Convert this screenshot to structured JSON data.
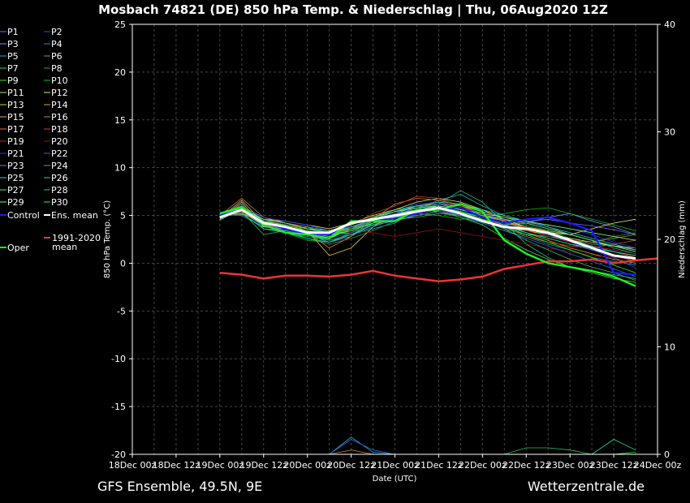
{
  "chart_data": {
    "type": "line",
    "title": "Mosbach 74821 (DE)  850 hPa Temp. & Niederschlag | Thu, 06Aug2020 12Z",
    "xlabel": "Date (UTC)",
    "ylabel": "850 hPa Temp. (°C)",
    "ylabel_right": "Niederschlag (mm)",
    "ylim": [
      -20,
      25
    ],
    "ylim_right": [
      0,
      40
    ],
    "yticks": [
      -20,
      -15,
      -10,
      -5,
      0,
      5,
      10,
      15,
      20,
      25
    ],
    "yticks_right": [
      0,
      10,
      20,
      30,
      40
    ],
    "x_step_hours": 6,
    "xlim_index": [
      0,
      24
    ],
    "x_tick_labels": [
      "18Dec 00z",
      "18Dec 12z",
      "19Dec 00z",
      "19Dec 12z",
      "20Dec 00z",
      "20Dec 12z",
      "21Dec 00z",
      "21Dec 12z",
      "22Dec 00z",
      "22Dec 12z",
      "23Dec 00z",
      "23Dec 12z",
      "24Dec 00z"
    ],
    "grid": true,
    "legend_position": "left",
    "footer_left": "GFS Ensemble, 49.5N, 9E",
    "footer_right": "Wetterzentrale.de",
    "members": [
      {
        "name": "P1",
        "color": "#6a6aff"
      },
      {
        "name": "P2",
        "color": "#2a4cff"
      },
      {
        "name": "P3",
        "color": "#7f8fff"
      },
      {
        "name": "P4",
        "color": "#1e90c8"
      },
      {
        "name": "P5",
        "color": "#20b4b4"
      },
      {
        "name": "P6",
        "color": "#20c080"
      },
      {
        "name": "P7",
        "color": "#30d070"
      },
      {
        "name": "P8",
        "color": "#20a040"
      },
      {
        "name": "P9",
        "color": "#40e040"
      },
      {
        "name": "P10",
        "color": "#10c010"
      },
      {
        "name": "P11",
        "color": "#d0e060"
      },
      {
        "name": "P12",
        "color": "#e8e878"
      },
      {
        "name": "P13",
        "color": "#e0c040"
      },
      {
        "name": "P14",
        "color": "#e8a020"
      },
      {
        "name": "P15",
        "color": "#d8a070"
      },
      {
        "name": "P16",
        "color": "#c08040"
      },
      {
        "name": "P17",
        "color": "#e07030"
      },
      {
        "name": "P18",
        "color": "#d04020"
      },
      {
        "name": "P19",
        "color": "#c02020"
      },
      {
        "name": "P20",
        "color": "#901010"
      },
      {
        "name": "P21",
        "color": "#3030ff"
      },
      {
        "name": "P22",
        "color": "#2070e0"
      },
      {
        "name": "P23",
        "color": "#6080c0"
      },
      {
        "name": "P24",
        "color": "#40a0c0"
      },
      {
        "name": "P25",
        "color": "#30d0d0"
      },
      {
        "name": "P26",
        "color": "#20e0a0"
      },
      {
        "name": "P27",
        "color": "#50f080"
      },
      {
        "name": "P28",
        "color": "#30c060"
      },
      {
        "name": "P29",
        "color": "#70ff70"
      },
      {
        "name": "P30",
        "color": "#20ff20"
      }
    ],
    "member_values": [
      [
        4.8,
        5.6,
        4.2,
        3.8,
        3.2,
        2.6,
        3.8,
        4.6,
        5.0,
        5.8,
        6.0,
        5.4,
        4.8,
        4.5,
        4.4,
        4.6,
        4.2,
        3.9,
        3.5,
        3.0
      ],
      [
        5.0,
        5.2,
        4.4,
        3.6,
        3.0,
        2.8,
        3.4,
        4.8,
        5.4,
        6.2,
        6.4,
        5.8,
        5.0,
        4.2,
        3.6,
        3.0,
        2.2,
        1.4,
        0.6,
        -0.5
      ],
      [
        4.6,
        6.2,
        3.6,
        3.4,
        3.0,
        2.2,
        2.8,
        4.2,
        4.6,
        5.2,
        5.6,
        5.0,
        4.6,
        4.0,
        4.2,
        4.8,
        5.2,
        4.4,
        3.8,
        3.0
      ],
      [
        5.2,
        5.8,
        4.6,
        4.0,
        3.6,
        3.0,
        3.6,
        4.0,
        4.4,
        5.0,
        5.4,
        4.8,
        4.2,
        3.4,
        2.8,
        2.0,
        1.4,
        0.6,
        0.2,
        -0.2
      ],
      [
        4.9,
        5.4,
        4.0,
        3.2,
        2.8,
        2.4,
        3.0,
        3.6,
        4.2,
        5.6,
        6.6,
        7.2,
        6.0,
        5.0,
        4.4,
        3.8,
        3.0,
        2.4,
        1.6,
        1.0
      ],
      [
        5.1,
        5.0,
        3.8,
        3.6,
        3.2,
        3.0,
        3.8,
        4.4,
        5.2,
        5.8,
        6.2,
        7.6,
        6.4,
        4.2,
        2.0,
        0.6,
        -0.4,
        -0.8,
        -1.2,
        -1.6
      ],
      [
        4.7,
        5.9,
        4.8,
        4.2,
        3.8,
        3.4,
        4.0,
        4.8,
        5.6,
        6.0,
        5.8,
        5.2,
        4.4,
        3.6,
        3.0,
        2.8,
        2.4,
        2.0,
        1.8,
        1.2
      ],
      [
        5.3,
        5.5,
        4.2,
        3.4,
        2.6,
        2.0,
        2.6,
        3.4,
        4.4,
        5.4,
        6.2,
        6.0,
        5.2,
        4.6,
        4.0,
        3.4,
        2.6,
        2.2,
        2.8,
        3.2
      ],
      [
        4.5,
        5.7,
        4.6,
        3.8,
        3.4,
        3.2,
        3.8,
        4.6,
        5.2,
        5.6,
        5.4,
        4.8,
        4.0,
        2.6,
        1.4,
        0.4,
        -0.4,
        -1.0,
        -1.6,
        -2.0
      ],
      [
        5.0,
        6.0,
        4.4,
        3.2,
        2.4,
        2.2,
        3.2,
        4.4,
        5.0,
        5.2,
        5.0,
        4.6,
        4.8,
        5.2,
        5.6,
        5.8,
        5.2,
        4.6,
        4.0,
        3.4
      ],
      [
        4.8,
        5.3,
        4.0,
        3.6,
        3.0,
        2.6,
        3.6,
        4.4,
        4.8,
        5.4,
        5.8,
        5.2,
        4.4,
        3.8,
        3.4,
        3.0,
        2.6,
        2.2,
        1.8,
        1.6
      ],
      [
        4.9,
        5.8,
        4.6,
        4.4,
        4.0,
        3.6,
        4.2,
        5.0,
        5.6,
        6.4,
        6.8,
        6.4,
        5.6,
        4.6,
        3.8,
        3.2,
        3.0,
        3.6,
        4.2,
        4.6
      ],
      [
        4.6,
        6.4,
        3.8,
        3.6,
        3.4,
        0.8,
        1.6,
        3.8,
        5.2,
        6.0,
        6.2,
        5.6,
        5.0,
        4.4,
        3.8,
        3.4,
        3.0,
        2.4,
        1.8,
        1.2
      ],
      [
        5.2,
        5.1,
        4.4,
        4.0,
        3.6,
        3.2,
        3.6,
        4.2,
        5.0,
        5.6,
        5.8,
        5.4,
        4.8,
        4.0,
        3.2,
        2.4,
        1.6,
        1.0,
        0.4,
        0.0
      ],
      [
        4.7,
        6.6,
        4.2,
        3.8,
        3.2,
        2.8,
        3.6,
        4.8,
        5.4,
        5.8,
        6.2,
        6.0,
        5.4,
        4.8,
        4.2,
        3.6,
        3.0,
        2.4,
        1.8,
        1.4
      ],
      [
        5.0,
        6.8,
        4.8,
        4.2,
        3.8,
        3.0,
        3.2,
        4.0,
        4.6,
        5.0,
        5.4,
        5.0,
        4.6,
        4.2,
        3.8,
        3.2,
        2.4,
        2.2,
        2.6,
        3.0
      ],
      [
        4.8,
        5.6,
        4.0,
        3.6,
        3.2,
        1.6,
        2.8,
        4.6,
        6.2,
        6.8,
        6.6,
        6.0,
        5.2,
        4.4,
        3.6,
        3.0,
        2.4,
        1.8,
        1.2,
        0.6
      ],
      [
        5.1,
        5.4,
        4.4,
        4.0,
        3.6,
        3.2,
        4.0,
        5.2,
        6.0,
        7.0,
        6.8,
        6.0,
        5.0,
        3.8,
        2.8,
        2.2,
        1.8,
        1.6,
        2.0,
        2.4
      ],
      [
        4.9,
        5.9,
        4.2,
        3.8,
        3.4,
        3.0,
        3.4,
        4.2,
        4.8,
        5.2,
        5.6,
        5.2,
        4.6,
        4.0,
        3.4,
        2.8,
        2.2,
        1.8,
        1.4,
        1.0
      ],
      [
        5.0,
        5.3,
        4.6,
        4.0,
        3.4,
        3.2,
        3.4,
        3.2,
        2.8,
        3.2,
        3.6,
        3.2,
        2.8,
        2.4,
        2.0,
        1.6,
        1.2,
        0.8,
        0.6,
        0.4
      ],
      [
        4.8,
        5.7,
        4.8,
        4.4,
        4.0,
        3.4,
        3.8,
        4.6,
        5.2,
        5.8,
        6.2,
        5.8,
        5.2,
        4.6,
        4.2,
        4.0,
        3.6,
        3.0,
        2.2,
        1.6
      ],
      [
        5.2,
        5.0,
        4.0,
        3.4,
        3.0,
        2.6,
        3.2,
        4.0,
        4.8,
        5.4,
        5.6,
        5.0,
        4.2,
        3.4,
        2.6,
        1.8,
        1.0,
        0.2,
        -0.6,
        -1.4
      ],
      [
        4.6,
        5.6,
        4.4,
        3.8,
        3.4,
        3.0,
        3.6,
        4.4,
        4.8,
        5.0,
        5.4,
        5.0,
        4.4,
        3.8,
        3.2,
        2.6,
        2.0,
        1.4,
        0.8,
        0.2
      ],
      [
        5.0,
        5.8,
        4.2,
        3.6,
        3.0,
        2.4,
        3.0,
        3.8,
        4.6,
        5.2,
        5.6,
        5.4,
        4.8,
        4.2,
        3.6,
        3.0,
        2.4,
        1.8,
        1.2,
        0.8
      ],
      [
        4.9,
        5.5,
        4.6,
        4.2,
        3.6,
        3.2,
        3.8,
        4.6,
        5.4,
        6.0,
        6.4,
        6.2,
        5.6,
        5.0,
        4.4,
        3.8,
        3.2,
        2.6,
        2.0,
        1.4
      ],
      [
        5.1,
        5.2,
        3.6,
        3.2,
        2.6,
        2.2,
        3.0,
        4.0,
        4.8,
        5.4,
        5.8,
        5.4,
        4.8,
        4.0,
        3.2,
        2.6,
        2.0,
        1.6,
        1.2,
        0.8
      ],
      [
        4.7,
        5.9,
        4.4,
        4.0,
        3.4,
        3.0,
        3.4,
        4.2,
        5.0,
        5.6,
        6.0,
        5.6,
        5.0,
        4.6,
        4.2,
        3.6,
        3.0,
        2.4,
        1.8,
        1.2
      ],
      [
        5.0,
        5.4,
        3.0,
        3.4,
        3.8,
        3.0,
        3.6,
        4.2,
        4.6,
        4.8,
        5.2,
        5.0,
        4.6,
        3.6,
        2.4,
        1.4,
        0.4,
        -0.4,
        -1.0,
        -1.8
      ],
      [
        4.8,
        5.7,
        4.6,
        4.2,
        3.6,
        3.4,
        4.0,
        4.8,
        5.4,
        5.8,
        6.0,
        5.6,
        5.2,
        4.8,
        4.4,
        4.0,
        3.6,
        3.2,
        2.8,
        2.4
      ],
      [
        5.2,
        5.6,
        4.2,
        3.8,
        3.2,
        2.8,
        3.4,
        4.2,
        5.0,
        5.6,
        5.8,
        5.4,
        4.6,
        3.8,
        3.0,
        2.2,
        1.4,
        0.6,
        -0.2,
        -1.0
      ]
    ],
    "control": {
      "name": "Control",
      "color": "#1a1aff",
      "values": [
        5.0,
        5.6,
        4.2,
        3.6,
        3.0,
        3.0,
        4.2,
        4.6,
        4.6,
        5.2,
        5.8,
        5.8,
        4.8,
        4.2,
        4.6,
        4.8,
        4.2,
        3.4,
        -1.0,
        -1.2
      ]
    },
    "ens_mean": {
      "name": "Ens. mean",
      "color": "#ffffff",
      "values": [
        4.8,
        5.6,
        4.2,
        3.8,
        3.2,
        3.2,
        4.2,
        4.6,
        5.0,
        5.4,
        5.8,
        5.2,
        4.4,
        3.8,
        3.6,
        3.2,
        2.4,
        1.6,
        0.8,
        0.5
      ]
    },
    "oper": {
      "name": "Oper",
      "color": "#22ee22",
      "values": [
        5.2,
        5.9,
        4.0,
        3.2,
        3.0,
        2.6,
        4.4,
        4.4,
        4.4,
        5.6,
        5.6,
        6.2,
        5.4,
        2.4,
        1.0,
        0.0,
        -0.4,
        -0.8,
        -1.4,
        -2.4
      ]
    },
    "climate_mean": {
      "name": "1991-2020 mean",
      "color": "#ee3333",
      "values": [
        -1.0,
        -1.2,
        -1.6,
        -1.3,
        -1.3,
        -1.4,
        -1.2,
        -0.8,
        -1.3,
        -1.6,
        -1.9,
        -1.7,
        -1.4,
        -0.6,
        -0.2,
        0.2,
        0.2,
        0.4,
        0.0,
        0.3,
        0.5
      ]
    },
    "precip_series": [
      {
        "name": "P5",
        "color": "#20b4b4",
        "values": [
          0,
          0,
          0,
          0,
          0,
          0,
          0,
          0,
          0,
          0,
          0,
          0,
          0,
          0,
          0,
          0,
          0,
          0,
          0,
          0
        ]
      },
      {
        "name": "P6",
        "color": "#20c080",
        "values": [
          0,
          0,
          0,
          0,
          0,
          0,
          0,
          0,
          0,
          0,
          0,
          0,
          0,
          0,
          0,
          0,
          0,
          0,
          0,
          0
        ]
      },
      {
        "name": "P28",
        "color": "#30c060",
        "values": [
          0,
          0,
          0,
          0,
          0,
          0,
          0,
          0,
          0,
          0,
          0,
          0,
          0,
          0,
          0.6,
          0.6,
          0.4,
          0,
          0,
          0
        ]
      },
      {
        "name": "P26",
        "color": "#20e0a0",
        "values": [
          0,
          0,
          0,
          0,
          0,
          0,
          0,
          0,
          0,
          0,
          0,
          0,
          0,
          0,
          0,
          0,
          0,
          0,
          1.4,
          0.4
        ]
      },
      {
        "name": "P24",
        "color": "#40a0c0",
        "values": [
          0,
          0,
          0,
          0,
          0,
          0,
          1.6,
          0.2,
          0,
          0,
          0,
          0,
          0,
          0,
          0,
          0,
          0,
          0,
          0,
          0
        ]
      },
      {
        "name": "P22",
        "color": "#2070e0",
        "values": [
          0,
          0,
          0,
          0,
          0,
          0,
          1.4,
          0.4,
          0,
          0,
          0,
          0,
          0,
          0,
          0,
          0,
          0,
          0,
          0,
          0
        ]
      },
      {
        "name": "P16",
        "color": "#c08040",
        "values": [
          0,
          0,
          0,
          0,
          0,
          0,
          0.4,
          0,
          0,
          0,
          0,
          0,
          0,
          0,
          0,
          0,
          0,
          0,
          0,
          0
        ]
      },
      {
        "name": "Oper",
        "color": "#22ee22",
        "values": [
          0,
          0,
          0,
          0,
          0,
          0,
          0,
          0,
          0,
          0,
          0,
          0,
          0,
          0,
          0,
          0,
          0,
          0,
          0,
          0.2
        ]
      }
    ]
  }
}
